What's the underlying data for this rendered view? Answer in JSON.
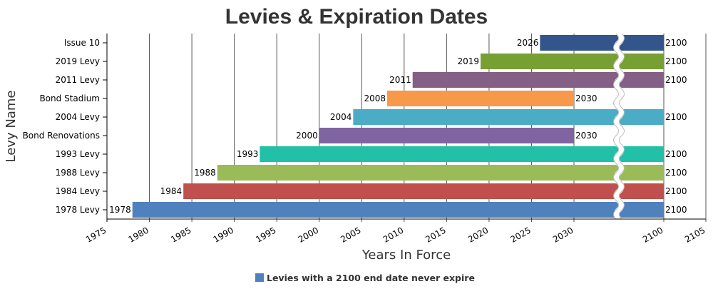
{
  "chart_data": {
    "type": "bar",
    "orientation": "horizontal",
    "style": "range",
    "title": "Levies & Expiration Dates",
    "xlabel": "Years In Force",
    "ylabel": "Levy Name",
    "x_range": [
      1975,
      2105
    ],
    "x_ticks": [
      1975,
      1980,
      1985,
      1990,
      1995,
      2000,
      2005,
      2010,
      2015,
      2020,
      2025,
      2030,
      2100,
      2105
    ],
    "scale_break": {
      "from": 2030,
      "to": 2100
    },
    "grid": "vertical",
    "legend": {
      "placement": "bottom-center",
      "entries": [
        "Levies with a 2100 end date never expire"
      ]
    },
    "bars": [
      {
        "category": "Issue 10",
        "start": 2026,
        "end": 2100,
        "color": "#33558B"
      },
      {
        "category": "2019 Levy",
        "start": 2019,
        "end": 2100,
        "color": "#77A033"
      },
      {
        "category": "2011 Levy",
        "start": 2011,
        "end": 2100,
        "color": "#845F86"
      },
      {
        "category": "Bond Stadium",
        "start": 2008,
        "end": 2030,
        "color": "#F7984A"
      },
      {
        "category": "2004 Levy",
        "start": 2004,
        "end": 2100,
        "color": "#4BACC6"
      },
      {
        "category": "Bond Renovations",
        "start": 2000,
        "end": 2030,
        "color": "#8064A2"
      },
      {
        "category": "1993 Levy",
        "start": 1993,
        "end": 2100,
        "color": "#21C0A7"
      },
      {
        "category": "1988 Levy",
        "start": 1988,
        "end": 2100,
        "color": "#9BBB59"
      },
      {
        "category": "1984 Levy",
        "start": 1984,
        "end": 2100,
        "color": "#C0504D"
      },
      {
        "category": "1978 Levy",
        "start": 1978,
        "end": 2100,
        "color": "#4F81BD"
      }
    ]
  }
}
